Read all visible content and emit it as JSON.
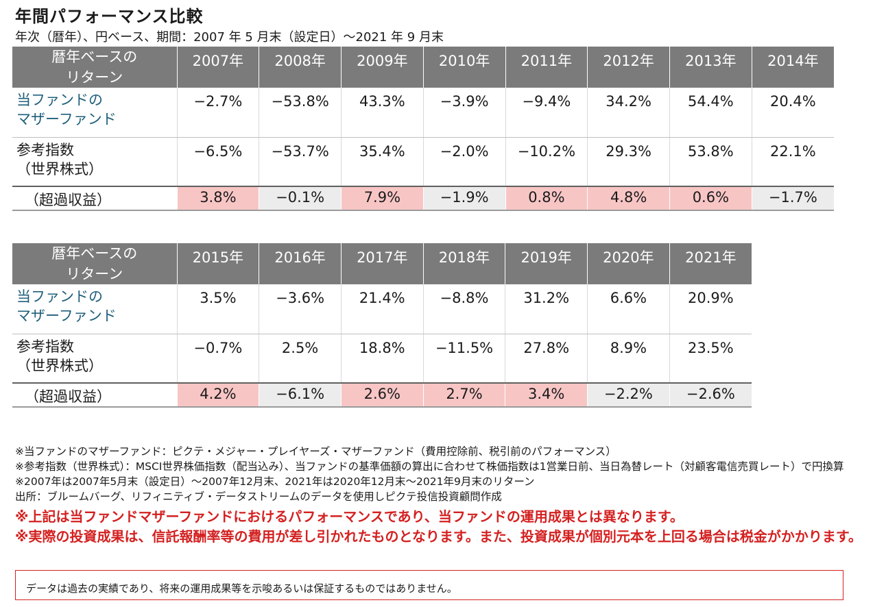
{
  "title": "年間パフォーマンス比較",
  "subtitle": "年次（暦年）、円ベース、期間：2007 年 5 月末（設定日）～2021 年 9 月末",
  "row_labels": {
    "header": [
      "暦年ベースの",
      "リターン"
    ],
    "fund": [
      "当ファンドの",
      "マザーファンド"
    ],
    "benchmark": [
      "参考指数",
      "（世界株式）"
    ],
    "excess": "（超過収益）"
  },
  "tables": [
    {
      "years": [
        "2007年",
        "2008年",
        "2009年",
        "2010年",
        "2011年",
        "2012年",
        "2013年",
        "2014年"
      ],
      "fund": [
        "−2.7%",
        "−53.8%",
        "43.3%",
        "−3.9%",
        "−9.4%",
        "34.2%",
        "54.4%",
        "20.4%"
      ],
      "benchmark": [
        "−6.5%",
        "−53.7%",
        "35.4%",
        "−2.0%",
        "−10.2%",
        "29.3%",
        "53.8%",
        "22.1%"
      ],
      "excess": [
        "3.8%",
        "−0.1%",
        "7.9%",
        "−1.9%",
        "0.8%",
        "4.8%",
        "0.6%",
        "−1.7%"
      ],
      "excess_sign": [
        "pos",
        "neg",
        "pos",
        "neg",
        "pos",
        "pos",
        "pos",
        "neg"
      ]
    },
    {
      "years": [
        "2015年",
        "2016年",
        "2017年",
        "2018年",
        "2019年",
        "2020年",
        "2021年"
      ],
      "fund": [
        "3.5%",
        "−3.6%",
        "21.4%",
        "−8.8%",
        "31.2%",
        "6.6%",
        "20.9%"
      ],
      "benchmark": [
        "−0.7%",
        "2.5%",
        "18.8%",
        "−11.5%",
        "27.8%",
        "8.9%",
        "23.5%"
      ],
      "excess": [
        "4.2%",
        "−6.1%",
        "2.6%",
        "2.7%",
        "3.4%",
        "−2.2%",
        "−2.6%"
      ],
      "excess_sign": [
        "pos",
        "neg",
        "pos",
        "pos",
        "pos",
        "neg",
        "neg"
      ]
    }
  ],
  "colors": {
    "header_bg": "#7b7b7b",
    "positive_bg": "#f8c5c5",
    "negative_bg": "#ececec",
    "fund_label": "#1f5f7a",
    "warning": "#d42020"
  },
  "notes": [
    "※当ファンドのマザーファンド：ピクテ・メジャー・プレイヤーズ・マザーファンド（費用控除前、税引前のパフォーマンス）",
    "※参考指数（世界株式）：MSCI世界株価指数（配当込み）、当ファンドの基準価額の算出に合わせて株価指数は1営業日前、当日為替レート（対顧客電信売買レート）で円換算 ※2007年は2007年5月末（設定日）～2007年12月末、2021年は2020年12月末～2021年9月末のリターン",
    "出所：ブルームバーグ、リフィニティブ・データストリームのデータを使用しピクテ投信投資顧問作成"
  ],
  "warnings": [
    "※上記は当ファンドマザーファンドにおけるパフォーマンスであり、当ファンドの運用成果とは異なります。",
    "※実際の投資成果は、信託報酬率等の費用が差し引かれたものとなります。また、投資成果が個別元本を上回る場合は税金がかかります。"
  ],
  "disclaimer": "データは過去の実績であり、将来の運用成果等を示唆あるいは保証するものではありません。"
}
